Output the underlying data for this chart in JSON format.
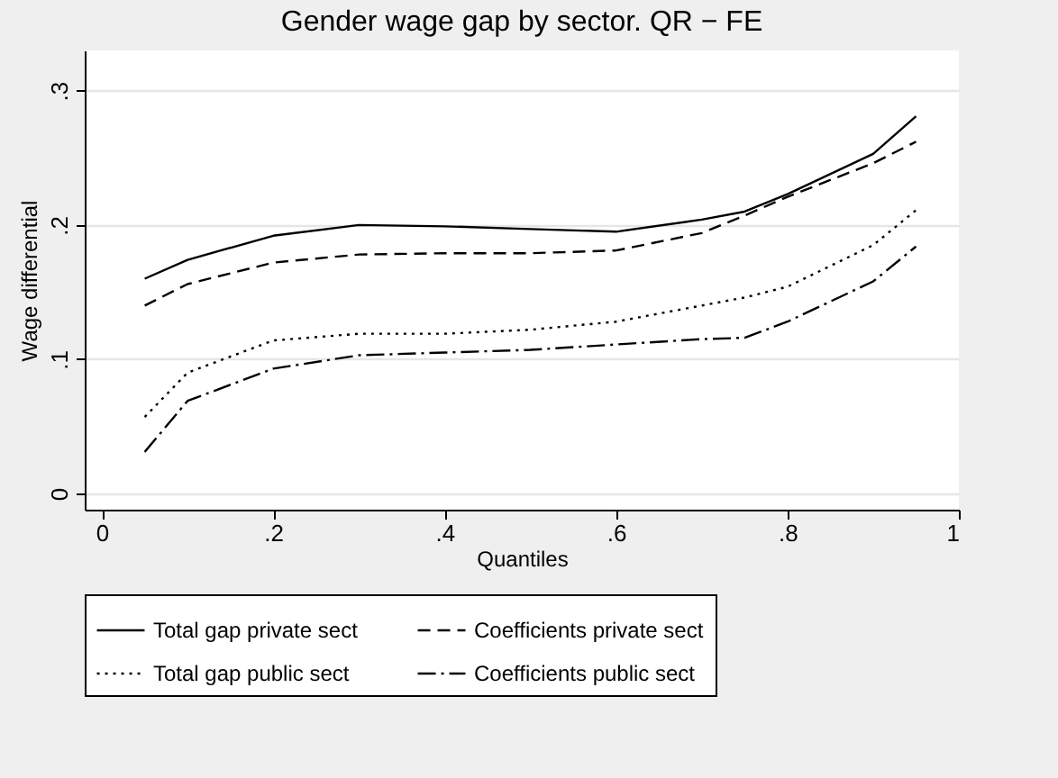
{
  "chart_data": {
    "type": "line",
    "title": "Gender wage gap by sector. QR − FE",
    "xlabel": "Quantiles",
    "ylabel": "Wage differential",
    "x": [
      0.05,
      0.1,
      0.2,
      0.3,
      0.4,
      0.5,
      0.6,
      0.7,
      0.75,
      0.8,
      0.9,
      0.95
    ],
    "series": [
      {
        "name": "Total gap private sect",
        "color": "#000000",
        "line_style": "solid",
        "values": [
          0.16,
          0.174,
          0.192,
          0.2,
          0.199,
          0.197,
          0.195,
          0.204,
          0.21,
          0.223,
          0.253,
          0.281
        ]
      },
      {
        "name": "Coefficients private sect",
        "color": "#000000",
        "line_style": "dashed",
        "values": [
          0.14,
          0.156,
          0.172,
          0.178,
          0.179,
          0.179,
          0.181,
          0.194,
          0.207,
          0.221,
          0.246,
          0.262
        ]
      },
      {
        "name": "Total gap public sect",
        "color": "#000000",
        "line_style": "dotted",
        "values": [
          0.057,
          0.09,
          0.114,
          0.119,
          0.119,
          0.122,
          0.128,
          0.14,
          0.146,
          0.154,
          0.185,
          0.211
        ]
      },
      {
        "name": "Coefficients public sect",
        "color": "#000000",
        "line_style": "dashdot",
        "values": [
          0.031,
          0.069,
          0.093,
          0.103,
          0.105,
          0.107,
          0.111,
          0.115,
          0.116,
          0.128,
          0.158,
          0.184
        ]
      }
    ],
    "xlim": [
      -0.02,
      1.0
    ],
    "ylim": [
      -0.012,
      0.33
    ],
    "xticks": [
      {
        "value": 0,
        "label": "0"
      },
      {
        "value": 0.2,
        "label": ".2"
      },
      {
        "value": 0.4,
        "label": ".4"
      },
      {
        "value": 0.6,
        "label": ".6"
      },
      {
        "value": 0.8,
        "label": ".8"
      },
      {
        "value": 1,
        "label": "1"
      }
    ],
    "yticks": [
      {
        "value": 0,
        "label": "0"
      },
      {
        "value": 0.1,
        "label": ".1"
      },
      {
        "value": 0.2,
        "label": ".2"
      },
      {
        "value": 0.3,
        "label": ".3"
      }
    ],
    "grid": "y",
    "legend": "bottom",
    "marker": "none"
  }
}
